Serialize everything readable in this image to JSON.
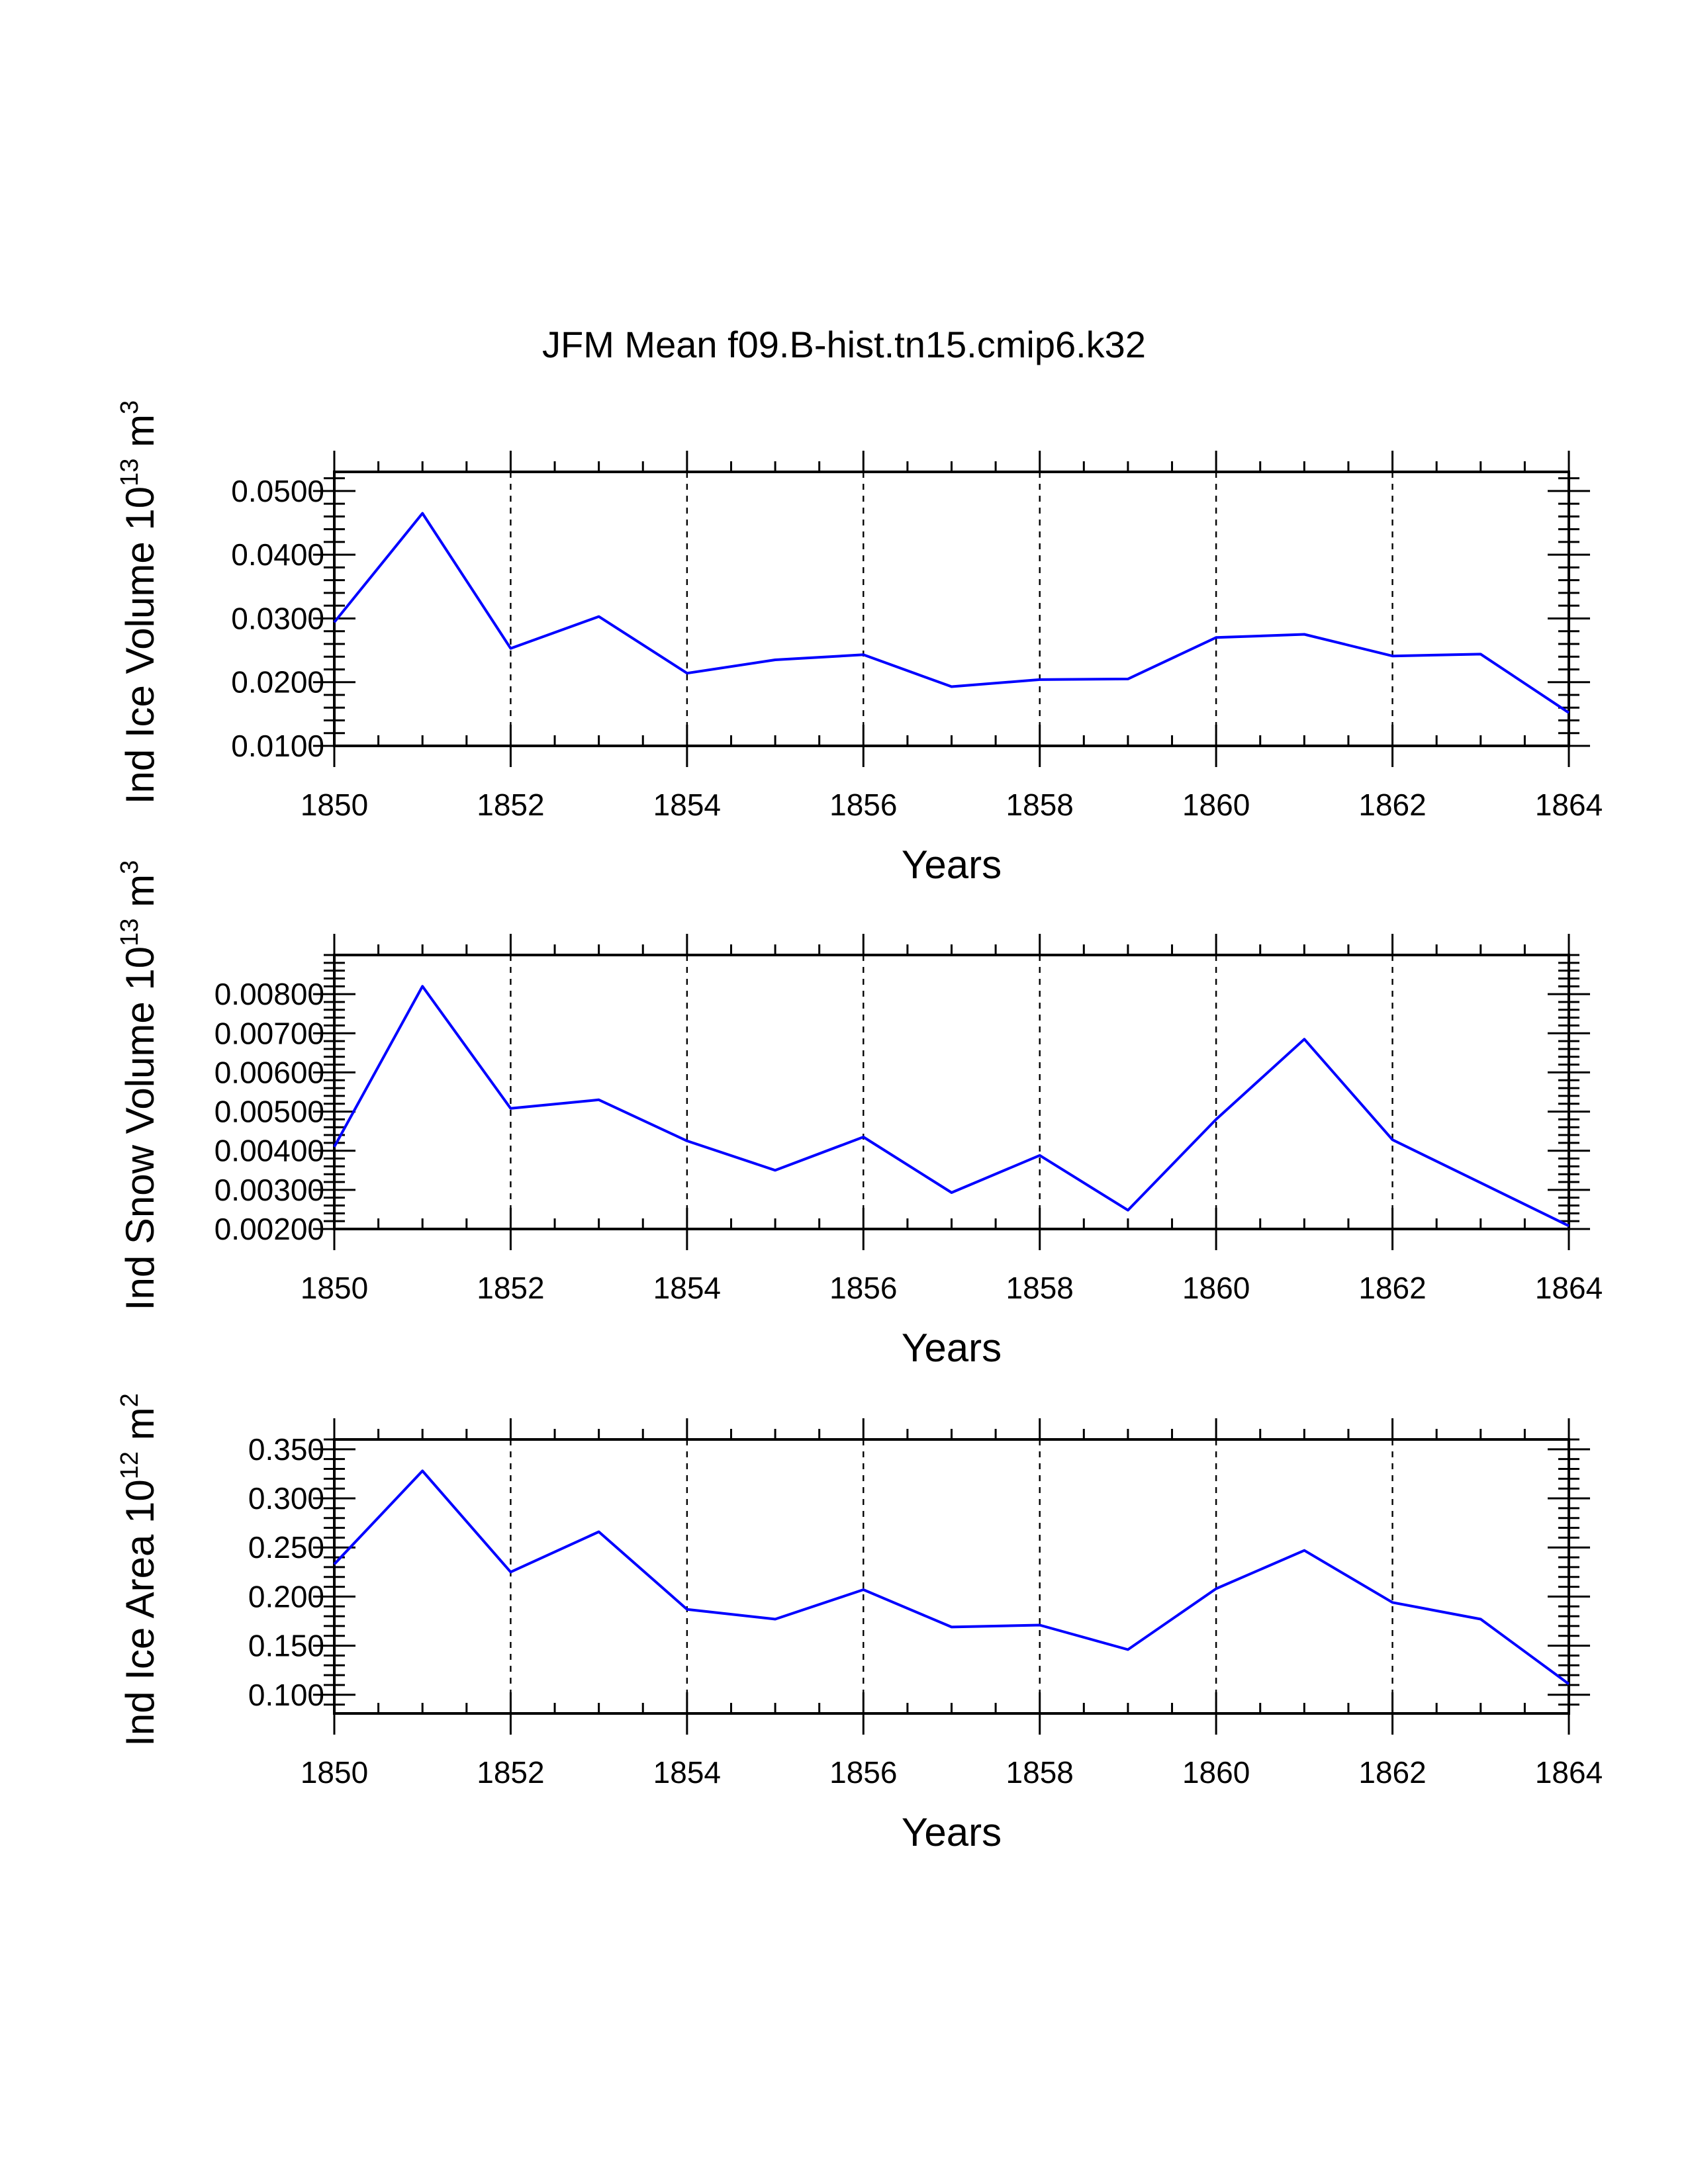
{
  "title": "JFM Mean f09.B-hist.tn15.cmip6.k32",
  "chart_data": [
    {
      "type": "line",
      "xlabel": "Years",
      "ylabel": "Ind Ice Volume 10",
      "ylabel_exp": "13",
      "ylabel_unit": " m",
      "ylabel_unit_exp": "3",
      "xlim": [
        1850,
        1864
      ],
      "ylim": [
        0.01,
        0.053
      ],
      "x_ticks": [
        1850,
        1852,
        1854,
        1856,
        1858,
        1860,
        1862,
        1864
      ],
      "x_tick_labels": [
        "1850",
        "1852",
        "1854",
        "1856",
        "1858",
        "1860",
        "1862",
        "1864"
      ],
      "y_ticks": [
        0.01,
        0.02,
        0.03,
        0.04,
        0.05
      ],
      "y_tick_labels": [
        "0.0100",
        "0.0200",
        "0.0300",
        "0.0400",
        "0.0500"
      ],
      "x_minor_step": 0.5,
      "y_minor_step": 0.002,
      "grid": "vertical dashed at major x ticks",
      "series": [
        {
          "name": "Ind Ice Volume",
          "color": "#0000ff",
          "x": [
            1850,
            1851,
            1852,
            1853,
            1854,
            1855,
            1856,
            1857,
            1858,
            1859,
            1860,
            1861,
            1862,
            1863,
            1864
          ],
          "values": [
            0.0294,
            0.0465,
            0.0253,
            0.0303,
            0.0214,
            0.0235,
            0.0243,
            0.0193,
            0.0204,
            0.0205,
            0.027,
            0.0275,
            0.0241,
            0.0244,
            0.0152
          ]
        }
      ]
    },
    {
      "type": "line",
      "xlabel": "Years",
      "ylabel": "Ind Snow Volume 10",
      "ylabel_exp": "13",
      "ylabel_unit": " m",
      "ylabel_unit_exp": "3",
      "xlim": [
        1850,
        1864
      ],
      "ylim": [
        0.002,
        0.009
      ],
      "x_ticks": [
        1850,
        1852,
        1854,
        1856,
        1858,
        1860,
        1862,
        1864
      ],
      "x_tick_labels": [
        "1850",
        "1852",
        "1854",
        "1856",
        "1858",
        "1860",
        "1862",
        "1864"
      ],
      "y_ticks": [
        0.002,
        0.003,
        0.004,
        0.005,
        0.006,
        0.007,
        0.008
      ],
      "y_tick_labels": [
        "0.00200",
        "0.00300",
        "0.00400",
        "0.00500",
        "0.00600",
        "0.00700",
        "0.00800"
      ],
      "x_minor_step": 0.5,
      "y_minor_step": 0.0002,
      "grid": "vertical dashed at major x ticks",
      "series": [
        {
          "name": "Ind Snow Volume",
          "color": "#0000ff",
          "x": [
            1850,
            1851,
            1852,
            1853,
            1854,
            1855,
            1856,
            1857,
            1858,
            1859,
            1860,
            1861,
            1862,
            1863,
            1864
          ],
          "values": [
            0.0041,
            0.0082,
            0.00508,
            0.0053,
            0.00425,
            0.0035,
            0.00435,
            0.00293,
            0.00388,
            0.00248,
            0.0048,
            0.00685,
            0.00428,
            0.00318,
            0.00208
          ]
        }
      ]
    },
    {
      "type": "line",
      "xlabel": "Years",
      "ylabel": "Ind Ice Area 10",
      "ylabel_exp": "12",
      "ylabel_unit": " m",
      "ylabel_unit_exp": "2",
      "xlim": [
        1850,
        1864
      ],
      "ylim": [
        0.081,
        0.36
      ],
      "x_ticks": [
        1850,
        1852,
        1854,
        1856,
        1858,
        1860,
        1862,
        1864
      ],
      "x_tick_labels": [
        "1850",
        "1852",
        "1854",
        "1856",
        "1858",
        "1860",
        "1862",
        "1864"
      ],
      "y_ticks": [
        0.1,
        0.15,
        0.2,
        0.25,
        0.3,
        0.35
      ],
      "y_tick_labels": [
        "0.100",
        "0.150",
        "0.200",
        "0.250",
        "0.300",
        "0.350"
      ],
      "x_minor_step": 0.5,
      "y_minor_step": 0.01,
      "grid": "vertical dashed at major x ticks",
      "series": [
        {
          "name": "Ind Ice Area",
          "color": "#0000ff",
          "x": [
            1850,
            1851,
            1852,
            1853,
            1854,
            1855,
            1856,
            1857,
            1858,
            1859,
            1860,
            1861,
            1862,
            1863,
            1864
          ],
          "values": [
            0.233,
            0.328,
            0.225,
            0.266,
            0.187,
            0.177,
            0.207,
            0.169,
            0.171,
            0.146,
            0.208,
            0.247,
            0.194,
            0.177,
            0.111
          ]
        }
      ]
    }
  ]
}
